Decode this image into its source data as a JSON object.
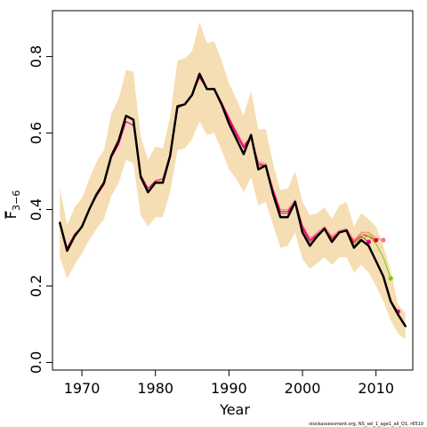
{
  "chart_data": {
    "type": "line",
    "title": "",
    "xlabel": "Year",
    "ylabel_main": "F",
    "ylabel_sub": "3−6",
    "xlim": [
      1966,
      2015
    ],
    "ylim": [
      -0.02,
      0.92
    ],
    "x_ticks": [
      1970,
      1980,
      1990,
      2000,
      2010
    ],
    "x_tick_labels": [
      "1970",
      "1980",
      "1990",
      "2000",
      "2010"
    ],
    "y_ticks": [
      0.0,
      0.2,
      0.4,
      0.6,
      0.8
    ],
    "y_tick_labels": [
      "0.0",
      "0.2",
      "0.4",
      "0.6",
      "0.8"
    ],
    "grid": false,
    "legend": "none",
    "footer": "stockassessment.org, NS_sel_1_age1_all_Q1, r6510",
    "colors": {
      "band": "#f5deb3",
      "main_line": "#000000",
      "retro_red": "#e8003d",
      "retro_pink": "#ff6e8c",
      "retro_magenta": "#e6007e",
      "retro_green": "#7ccd00",
      "retro_olive": "#c8c832"
    },
    "band": {
      "x": [
        1967,
        1968,
        1969,
        1970,
        1971,
        1972,
        1973,
        1974,
        1975,
        1976,
        1977,
        1978,
        1979,
        1980,
        1981,
        1982,
        1983,
        1984,
        1985,
        1986,
        1987,
        1988,
        1989,
        1990,
        1991,
        1992,
        1993,
        1994,
        1995,
        1996,
        1997,
        1998,
        1999,
        2000,
        2001,
        2002,
        2003,
        2004,
        2005,
        2006,
        2007,
        2008,
        2009,
        2010,
        2011,
        2012,
        2013,
        2014
      ],
      "upper": [
        0.455,
        0.36,
        0.405,
        0.43,
        0.48,
        0.525,
        0.555,
        0.65,
        0.69,
        0.765,
        0.76,
        0.59,
        0.53,
        0.565,
        0.56,
        0.64,
        0.79,
        0.795,
        0.815,
        0.89,
        0.835,
        0.84,
        0.79,
        0.73,
        0.69,
        0.645,
        0.71,
        0.61,
        0.61,
        0.52,
        0.45,
        0.455,
        0.5,
        0.42,
        0.385,
        0.39,
        0.405,
        0.375,
        0.41,
        0.42,
        0.355,
        0.39,
        0.375,
        0.355,
        0.305,
        0.24,
        0.15,
        0.13
      ],
      "lower": [
        0.275,
        0.22,
        0.255,
        0.285,
        0.32,
        0.35,
        0.375,
        0.435,
        0.47,
        0.53,
        0.52,
        0.385,
        0.355,
        0.38,
        0.38,
        0.445,
        0.555,
        0.56,
        0.585,
        0.63,
        0.595,
        0.6,
        0.555,
        0.505,
        0.48,
        0.445,
        0.485,
        0.41,
        0.42,
        0.36,
        0.3,
        0.305,
        0.34,
        0.27,
        0.245,
        0.26,
        0.275,
        0.255,
        0.275,
        0.275,
        0.235,
        0.255,
        0.235,
        0.2,
        0.16,
        0.11,
        0.075,
        0.06
      ]
    },
    "series": [
      {
        "x": [
          1967,
          1968,
          1969,
          1970,
          1971,
          1972,
          1973,
          1974,
          1975,
          1976,
          1977,
          1978,
          1979,
          1980,
          1981,
          1982,
          1983,
          1984,
          1985,
          1986,
          1987,
          1988,
          1989,
          1990,
          1991,
          1992,
          1993,
          1994,
          1995,
          1996,
          1997,
          1998,
          1999,
          2000,
          2001,
          2002,
          2003,
          2004,
          2005,
          2006,
          2007,
          2008,
          2009,
          2010,
          2011,
          2012,
          2013,
          2014
        ],
        "values": [
          0.365,
          0.292,
          0.33,
          0.355,
          0.4,
          0.44,
          0.47,
          0.54,
          0.58,
          0.645,
          0.635,
          0.485,
          0.445,
          0.47,
          0.47,
          0.54,
          0.67,
          0.675,
          0.7,
          0.755,
          0.715,
          0.715,
          0.675,
          0.625,
          0.585,
          0.545,
          0.595,
          0.505,
          0.515,
          0.44,
          0.38,
          0.38,
          0.42,
          0.34,
          0.305,
          0.33,
          0.35,
          0.315,
          0.34,
          0.345,
          0.3,
          0.32,
          0.305,
          0.265,
          0.225,
          0.16,
          0.125,
          0.095
        ],
        "color": "#000000",
        "width": 2.5,
        "end_point": false
      },
      {
        "x": [
          1967,
          1968,
          1969,
          1970,
          1971,
          1972,
          1973,
          1974,
          1975,
          1976,
          1977,
          1978,
          1979,
          1980,
          1981,
          1982,
          1983,
          1984,
          1985,
          1986,
          1987,
          1988,
          1989,
          1990,
          1991,
          1992,
          1993,
          1994,
          1995,
          1996,
          1997,
          1998,
          1999,
          2000,
          2001,
          2002,
          2003,
          2004,
          2005,
          2006,
          2007,
          2008,
          2009,
          2010,
          2011
        ],
        "values": [
          0.36,
          0.3,
          0.335,
          0.355,
          0.4,
          0.435,
          0.465,
          0.535,
          0.57,
          0.63,
          0.62,
          0.49,
          0.455,
          0.475,
          0.48,
          0.545,
          0.665,
          0.675,
          0.7,
          0.745,
          0.715,
          0.715,
          0.68,
          0.64,
          0.605,
          0.57,
          0.59,
          0.525,
          0.52,
          0.455,
          0.4,
          0.4,
          0.425,
          0.36,
          0.325,
          0.34,
          0.355,
          0.33,
          0.345,
          0.35,
          0.32,
          0.34,
          0.34,
          0.325,
          0.32
        ],
        "color": "#ff6e8c",
        "width": 1,
        "end_point": true
      },
      {
        "x": [
          1967,
          1968,
          1969,
          1970,
          1971,
          1972,
          1973,
          1974,
          1975,
          1976,
          1977,
          1978,
          1979,
          1980,
          1981,
          1982,
          1983,
          1984,
          1985,
          1986,
          1987,
          1988,
          1989,
          1990,
          1991,
          1992,
          1993,
          1994,
          1995,
          1996,
          1997,
          1998,
          1999,
          2000,
          2001,
          2002,
          2003,
          2004,
          2005,
          2006,
          2007,
          2008,
          2009,
          2010
        ],
        "values": [
          0.36,
          0.3,
          0.335,
          0.355,
          0.4,
          0.435,
          0.465,
          0.535,
          0.57,
          0.63,
          0.62,
          0.49,
          0.455,
          0.475,
          0.48,
          0.545,
          0.665,
          0.675,
          0.7,
          0.745,
          0.715,
          0.715,
          0.68,
          0.64,
          0.6,
          0.565,
          0.59,
          0.52,
          0.515,
          0.45,
          0.395,
          0.395,
          0.42,
          0.355,
          0.32,
          0.335,
          0.35,
          0.325,
          0.34,
          0.345,
          0.315,
          0.335,
          0.33,
          0.32
        ],
        "color": "#e8003d",
        "width": 1,
        "end_point": true
      },
      {
        "x": [
          1967,
          1968,
          1969,
          1970,
          1971,
          1972,
          1973,
          1974,
          1975,
          1976,
          1977,
          1978,
          1979,
          1980,
          1981,
          1982,
          1983,
          1984,
          1985,
          1986,
          1987,
          1988,
          1989,
          1990,
          1991,
          1992,
          1993,
          1994,
          1995,
          1996,
          1997,
          1998,
          1999,
          2000,
          2001,
          2002,
          2003,
          2004,
          2005,
          2006,
          2007,
          2008,
          2009
        ],
        "values": [
          0.36,
          0.3,
          0.335,
          0.355,
          0.4,
          0.435,
          0.465,
          0.535,
          0.57,
          0.63,
          0.62,
          0.49,
          0.455,
          0.475,
          0.48,
          0.545,
          0.665,
          0.675,
          0.7,
          0.745,
          0.715,
          0.715,
          0.68,
          0.635,
          0.595,
          0.56,
          0.59,
          0.515,
          0.515,
          0.45,
          0.39,
          0.39,
          0.42,
          0.35,
          0.315,
          0.335,
          0.35,
          0.32,
          0.34,
          0.345,
          0.31,
          0.33,
          0.315
        ],
        "color": "#e6007e",
        "width": 1,
        "end_point": true
      },
      {
        "x": [
          2007,
          2008,
          2009,
          2010,
          2011,
          2012
        ],
        "values": [
          0.305,
          0.325,
          0.33,
          0.31,
          0.275,
          0.22
        ],
        "color": "#7ccd00",
        "width": 1,
        "end_point": true
      },
      {
        "x": [
          2007,
          2008,
          2009,
          2010
        ],
        "values": [
          0.31,
          0.335,
          0.335,
          0.325
        ],
        "color": "#c8c832",
        "width": 1,
        "end_point": false
      },
      {
        "x": [
          2012,
          2013
        ],
        "values": [
          0.16,
          0.133
        ],
        "color": "#e6007e",
        "width": 1,
        "end_point": true
      }
    ]
  }
}
